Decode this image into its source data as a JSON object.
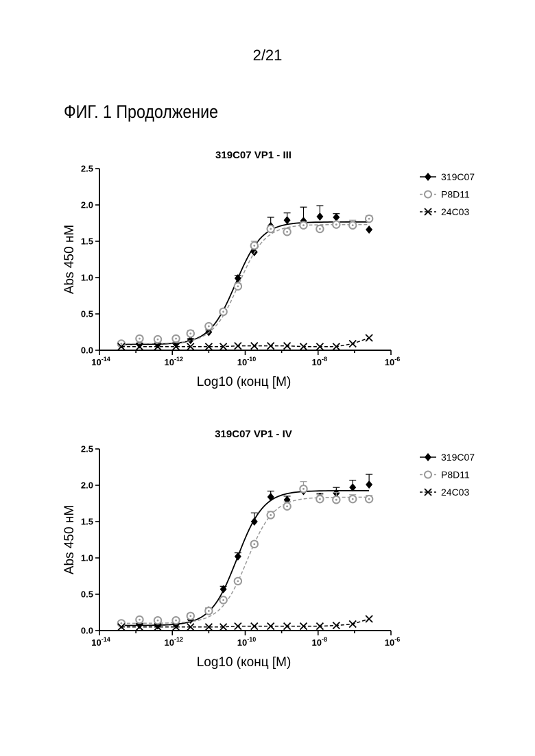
{
  "page": {
    "number": "2/21",
    "figure_title": "ФИГ. 1 Продолжение"
  },
  "colors": {
    "series_319C07": "#000000",
    "series_P8D11": "#999999",
    "series_24C03": "#000000"
  },
  "chart_data": [
    {
      "type": "scatter",
      "title": "319C07 VP1 - III",
      "xlabel": "Log10 (конц [M)",
      "ylabel": "Abs 450 нМ",
      "x_scale": "log10",
      "xlim": [
        -14,
        -6
      ],
      "ylim": [
        0,
        2.5
      ],
      "x_ticks": [
        -14,
        -12,
        -10,
        -8,
        -6
      ],
      "y_ticks": [
        "0.0",
        "0.5",
        "1.0",
        "1.5",
        "2.0",
        "2.5"
      ],
      "legend_position": "right",
      "grid": false,
      "series": [
        {
          "name": "319C07",
          "marker": "diamond",
          "line": "solid",
          "x": [
            -13.4,
            -12.9,
            -12.4,
            -11.9,
            -11.5,
            -11.0,
            -10.6,
            -10.2,
            -9.75,
            -9.3,
            -8.85,
            -8.4,
            -7.95,
            -7.5,
            -7.05,
            -6.6
          ],
          "y": [
            0.08,
            0.08,
            0.08,
            0.09,
            0.14,
            0.25,
            0.53,
            0.99,
            1.35,
            1.71,
            1.79,
            1.78,
            1.84,
            1.83,
            1.72,
            1.66
          ],
          "error": [
            0.02,
            0.02,
            0.02,
            0.02,
            0.02,
            0.03,
            0.03,
            0.04,
            0.1,
            0.12,
            0.1,
            0.19,
            0.15,
            0.05,
            0.05,
            0.0
          ]
        },
        {
          "name": "P8D11",
          "marker": "open-circle",
          "line": "dashed",
          "x": [
            -13.4,
            -12.9,
            -12.4,
            -11.9,
            -11.5,
            -11.0,
            -10.6,
            -10.2,
            -9.75,
            -9.3,
            -8.85,
            -8.4,
            -7.95,
            -7.5,
            -7.05,
            -6.6
          ],
          "y": [
            0.09,
            0.16,
            0.15,
            0.16,
            0.23,
            0.33,
            0.53,
            0.88,
            1.44,
            1.67,
            1.63,
            1.72,
            1.67,
            1.73,
            1.72,
            1.81
          ],
          "error": [
            0.02,
            0.02,
            0.02,
            0.03,
            0.04,
            0.03,
            0.03,
            0.04,
            0.06,
            0.04,
            0.05,
            0.04,
            0.05,
            0.04,
            0.07,
            0.04
          ]
        },
        {
          "name": "24C03",
          "marker": "x",
          "line": "dashed",
          "x": [
            -13.4,
            -12.9,
            -12.4,
            -11.9,
            -11.5,
            -11.0,
            -10.6,
            -10.2,
            -9.75,
            -9.3,
            -8.85,
            -8.4,
            -7.95,
            -7.5,
            -7.05,
            -6.6
          ],
          "y": [
            0.05,
            0.05,
            0.05,
            0.05,
            0.05,
            0.05,
            0.05,
            0.06,
            0.06,
            0.06,
            0.06,
            0.05,
            0.05,
            0.05,
            0.09,
            0.17
          ],
          "error": [
            0,
            0,
            0,
            0,
            0,
            0,
            0,
            0,
            0,
            0,
            0,
            0,
            0,
            0,
            0,
            0
          ]
        }
      ]
    },
    {
      "type": "scatter",
      "title": "319C07 VP1 - IV",
      "xlabel": "Log10 (конц [M)",
      "ylabel": "Abs 450 нМ",
      "x_scale": "log10",
      "xlim": [
        -14,
        -6
      ],
      "ylim": [
        0,
        2.5
      ],
      "x_ticks": [
        -14,
        -12,
        -10,
        -8,
        -6
      ],
      "y_ticks": [
        "0.0",
        "0.5",
        "1.0",
        "1.5",
        "2.0",
        "2.5"
      ],
      "legend_position": "right",
      "grid": false,
      "series": [
        {
          "name": "319C07",
          "marker": "diamond",
          "line": "solid",
          "x": [
            -13.4,
            -12.9,
            -12.4,
            -11.9,
            -11.5,
            -11.0,
            -10.6,
            -10.2,
            -9.75,
            -9.3,
            -8.85,
            -8.4,
            -7.95,
            -7.5,
            -7.05,
            -6.6
          ],
          "y": [
            0.08,
            0.08,
            0.07,
            0.08,
            0.15,
            0.28,
            0.57,
            1.02,
            1.5,
            1.84,
            1.8,
            1.92,
            1.84,
            1.89,
            1.97,
            2.01
          ],
          "error": [
            0.02,
            0.02,
            0.02,
            0.02,
            0.03,
            0.03,
            0.04,
            0.05,
            0.12,
            0.08,
            0.05,
            0.06,
            0.05,
            0.08,
            0.1,
            0.14
          ]
        },
        {
          "name": "P8D11",
          "marker": "open-circle",
          "line": "dashed",
          "x": [
            -13.4,
            -12.9,
            -12.4,
            -11.9,
            -11.5,
            -11.0,
            -10.6,
            -10.2,
            -9.75,
            -9.3,
            -8.85,
            -8.4,
            -7.95,
            -7.5,
            -7.05,
            -6.6
          ],
          "y": [
            0.1,
            0.15,
            0.14,
            0.14,
            0.2,
            0.27,
            0.42,
            0.68,
            1.19,
            1.59,
            1.71,
            1.95,
            1.81,
            1.8,
            1.81,
            1.81
          ],
          "error": [
            0.02,
            0.02,
            0.02,
            0.02,
            0.04,
            0.03,
            0.03,
            0.03,
            0.04,
            0.05,
            0.06,
            0.1,
            0.06,
            0.1,
            0.06,
            0.05
          ]
        },
        {
          "name": "24C03",
          "marker": "x",
          "line": "dashed",
          "x": [
            -13.4,
            -12.9,
            -12.4,
            -11.9,
            -11.5,
            -11.0,
            -10.6,
            -10.2,
            -9.75,
            -9.3,
            -8.85,
            -8.4,
            -7.95,
            -7.5,
            -7.05,
            -6.6
          ],
          "y": [
            0.05,
            0.05,
            0.05,
            0.05,
            0.05,
            0.05,
            0.05,
            0.06,
            0.06,
            0.06,
            0.06,
            0.06,
            0.06,
            0.07,
            0.09,
            0.16
          ],
          "error": [
            0,
            0,
            0,
            0,
            0,
            0,
            0,
            0,
            0,
            0,
            0,
            0,
            0,
            0,
            0,
            0
          ]
        }
      ]
    }
  ]
}
